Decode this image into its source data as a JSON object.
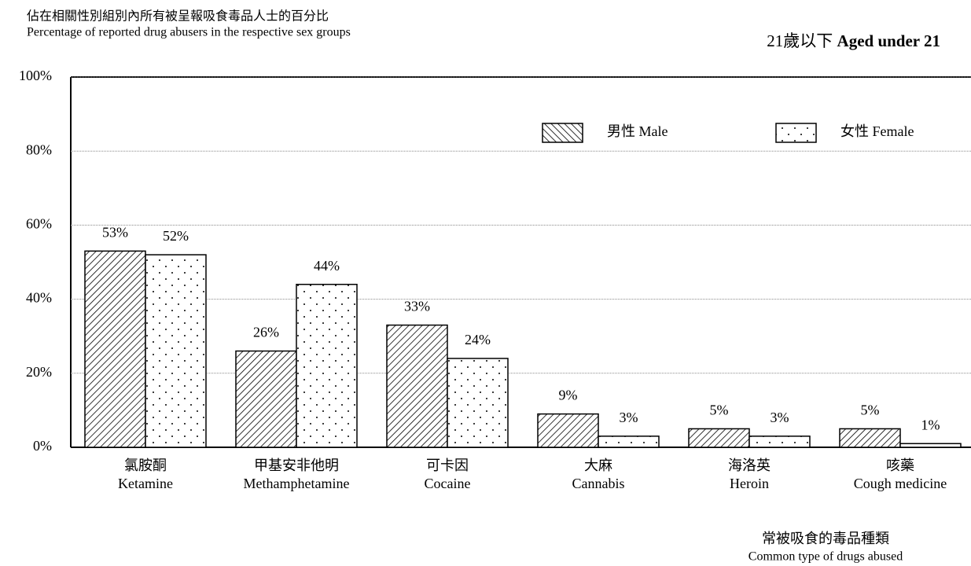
{
  "chart_data": {
    "type": "bar",
    "title": "佔在相關性別組別內所有被呈報吸食毒品人士的百分比",
    "title_en": "Percentage of reported drug abusers in the respective sex groups",
    "subtitle": "21歲以下",
    "subtitle_en": "Aged under 21",
    "x_label": "常被吸食的毒品種類",
    "x_label_en": "Common type of drugs abused",
    "categories": [
      [
        "氯胺酮",
        "Ketamine"
      ],
      [
        "甲基安非他明",
        "Methamphetamine"
      ],
      [
        "可卡因",
        "Cocaine"
      ],
      [
        "大麻",
        "Cannabis"
      ],
      [
        "海洛英",
        "Heroin"
      ],
      [
        "咳藥",
        "Cough medicine"
      ]
    ],
    "series": [
      {
        "name": "男性 Male",
        "color": "#000000",
        "pattern": "hatch",
        "values": [
          53,
          26,
          33,
          9,
          5,
          5
        ],
        "value_labels": [
          "53%",
          "26%",
          "33%",
          "9%",
          "5%",
          "5%"
        ]
      },
      {
        "name": "女性 Female",
        "color": "#000000",
        "pattern": "dots",
        "values": [
          52,
          44,
          24,
          3,
          3,
          1
        ],
        "value_labels": [
          "52%",
          "44%",
          "24%",
          "3%",
          "3%",
          "1%"
        ]
      }
    ],
    "ylim": [
      0,
      100
    ],
    "yticks": [
      {
        "value": 0,
        "label": "0%"
      },
      {
        "value": 20,
        "label": "20%"
      },
      {
        "value": 40,
        "label": "40%"
      },
      {
        "value": 60,
        "label": "60%"
      },
      {
        "value": 80,
        "label": "80%"
      },
      {
        "value": 100,
        "label": "100%"
      }
    ],
    "grid": true
  }
}
